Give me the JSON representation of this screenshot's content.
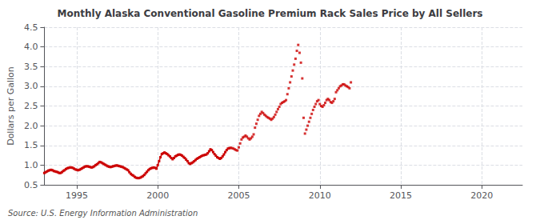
{
  "chart_data": {
    "type": "line",
    "title": "Monthly Alaska Conventional Gasoline Premium Rack Sales Price by All Sellers",
    "ylabel": "Dollars per Gallon",
    "source": "Source: U.S. Energy Information Administration",
    "xlim": [
      1993.0,
      2022.5
    ],
    "ylim": [
      0.5,
      4.5
    ],
    "xticks": [
      1995,
      2000,
      2005,
      2010,
      2015,
      2020
    ],
    "yticks": [
      0.5,
      {
        "value": 1.0,
        "label": "1.0"
      },
      1.5,
      {
        "value": 2.0,
        "label": "2.0"
      },
      2.5,
      {
        "value": 3.0,
        "label": "3.0"
      },
      3.5,
      {
        "value": 4.0,
        "label": "4.0"
      },
      4.5
    ],
    "grid": true,
    "series": [
      {
        "type": "line",
        "color": "#cc0000",
        "marker": "square",
        "line_style": "solid",
        "x": [
          1993.0,
          1993.083,
          1993.167,
          1993.25,
          1993.333,
          1993.417,
          1993.5,
          1993.583,
          1993.667,
          1993.75,
          1993.833,
          1993.917,
          1994.0,
          1994.083,
          1994.167,
          1994.25,
          1994.333,
          1994.417,
          1994.5,
          1994.583,
          1994.667,
          1994.75,
          1994.833,
          1994.917,
          1995.0,
          1995.083,
          1995.167,
          1995.25,
          1995.333,
          1995.417,
          1995.5,
          1995.583,
          1995.667,
          1995.75,
          1995.833,
          1995.917,
          1996.0,
          1996.083,
          1996.167,
          1996.25,
          1996.333,
          1996.417,
          1996.5,
          1996.583,
          1996.667,
          1996.75,
          1996.833,
          1996.917,
          1997.0,
          1997.083,
          1997.167,
          1997.25,
          1997.333,
          1997.417,
          1997.5,
          1997.583,
          1997.667,
          1997.75,
          1997.833,
          1997.917,
          1998.0,
          1998.083,
          1998.167,
          1998.25,
          1998.333,
          1998.417,
          1998.5,
          1998.583,
          1998.667,
          1998.75,
          1998.833,
          1998.917,
          1999.0,
          1999.083,
          1999.167,
          1999.25,
          1999.333,
          1999.417,
          1999.5,
          1999.583,
          1999.667,
          1999.75,
          1999.833,
          1999.917,
          2000.0,
          2000.083,
          2000.167,
          2000.25,
          2000.333,
          2000.417,
          2000.5,
          2000.583,
          2000.667,
          2000.75,
          2000.833,
          2000.917,
          2001.0,
          2001.083,
          2001.167,
          2001.25,
          2001.333,
          2001.417,
          2001.5,
          2001.583,
          2001.667,
          2001.75,
          2001.833,
          2001.917,
          2002.0,
          2002.083,
          2002.167,
          2002.25,
          2002.333,
          2002.417,
          2002.5,
          2002.583,
          2002.667,
          2002.75,
          2002.833,
          2002.917,
          2003.0,
          2003.083,
          2003.167,
          2003.25,
          2003.333,
          2003.417,
          2003.5,
          2003.583,
          2003.667,
          2003.75,
          2003.833,
          2003.917,
          2004.0,
          2004.083,
          2004.167,
          2004.25,
          2004.333,
          2004.417
        ],
        "values": [
          0.8,
          0.82,
          0.84,
          0.86,
          0.87,
          0.88,
          0.87,
          0.85,
          0.84,
          0.83,
          0.82,
          0.8,
          0.8,
          0.82,
          0.85,
          0.87,
          0.9,
          0.92,
          0.93,
          0.94,
          0.94,
          0.93,
          0.91,
          0.89,
          0.88,
          0.87,
          0.88,
          0.9,
          0.92,
          0.94,
          0.96,
          0.97,
          0.97,
          0.96,
          0.95,
          0.94,
          0.95,
          0.97,
          1.0,
          1.02,
          1.05,
          1.08,
          1.07,
          1.05,
          1.03,
          1.01,
          0.99,
          0.97,
          0.96,
          0.95,
          0.96,
          0.97,
          0.98,
          0.99,
          0.99,
          0.98,
          0.97,
          0.96,
          0.95,
          0.93,
          0.91,
          0.89,
          0.87,
          0.82,
          0.78,
          0.75,
          0.73,
          0.7,
          0.68,
          0.67,
          0.67,
          0.68,
          0.7,
          0.72,
          0.75,
          0.79,
          0.83,
          0.87,
          0.9,
          0.92,
          0.93,
          0.94,
          0.93,
          0.91,
          1.0,
          1.1,
          1.2,
          1.28,
          1.3,
          1.32,
          1.3,
          1.28,
          1.25,
          1.22,
          1.18,
          1.15,
          1.18,
          1.22,
          1.24,
          1.26,
          1.27,
          1.26,
          1.24,
          1.21,
          1.18,
          1.14,
          1.1,
          1.05,
          1.03,
          1.05,
          1.07,
          1.1,
          1.13,
          1.16,
          1.18,
          1.2,
          1.22,
          1.24,
          1.25,
          1.26,
          1.27,
          1.3,
          1.35,
          1.4,
          1.38,
          1.33,
          1.28,
          1.24,
          1.2,
          1.18,
          1.16,
          1.18,
          1.22,
          1.27,
          1.33,
          1.38,
          1.42,
          1.43
        ]
      },
      {
        "type": "scatter",
        "color": "#cc0000",
        "marker": "square",
        "x": [
          2004.5,
          2004.583,
          2004.667,
          2004.75,
          2004.833,
          2004.917,
          2005.0,
          2005.083,
          2005.167,
          2005.25,
          2005.333,
          2005.417,
          2005.5,
          2005.583,
          2005.667,
          2005.75,
          2005.833,
          2005.917,
          2006.0,
          2006.083,
          2006.167,
          2006.25,
          2006.333,
          2006.417,
          2006.5,
          2006.583,
          2006.667,
          2006.75,
          2006.833,
          2006.917,
          2007.0,
          2007.083,
          2007.167,
          2007.25,
          2007.333,
          2007.417,
          2007.5,
          2007.583,
          2007.667,
          2007.75,
          2007.833,
          2007.917,
          2008.0,
          2008.083,
          2008.167,
          2008.25,
          2008.333,
          2008.417,
          2008.5,
          2008.583,
          2008.667,
          2008.75,
          2008.833,
          2008.917,
          2009.0,
          2009.083,
          2009.167,
          2009.25,
          2009.333,
          2009.417,
          2009.5,
          2009.583,
          2009.667,
          2009.75,
          2009.833,
          2009.917,
          2010.0,
          2010.083,
          2010.167,
          2010.25,
          2010.333,
          2010.417,
          2010.5,
          2010.583,
          2010.667,
          2010.75,
          2010.833,
          2010.917,
          2011.0,
          2011.083,
          2011.167,
          2011.25,
          2011.333,
          2011.417,
          2011.5,
          2011.583,
          2011.667,
          2011.75,
          2011.833,
          2011.917
        ],
        "values": [
          1.44,
          1.43,
          1.42,
          1.4,
          1.38,
          1.37,
          1.45,
          1.55,
          1.65,
          1.7,
          1.72,
          1.75,
          1.72,
          1.68,
          1.65,
          1.68,
          1.72,
          1.78,
          1.95,
          2.05,
          2.15,
          2.25,
          2.3,
          2.35,
          2.32,
          2.28,
          2.25,
          2.22,
          2.2,
          2.18,
          2.15,
          2.18,
          2.22,
          2.28,
          2.35,
          2.42,
          2.48,
          2.55,
          2.58,
          2.6,
          2.62,
          2.65,
          2.8,
          2.95,
          3.1,
          3.25,
          3.4,
          3.55,
          3.7,
          3.9,
          4.05,
          3.85,
          3.6,
          3.2,
          2.2,
          1.8,
          1.9,
          2.0,
          2.1,
          2.2,
          2.3,
          2.4,
          2.48,
          2.55,
          2.62,
          2.65,
          2.55,
          2.5,
          2.48,
          2.52,
          2.58,
          2.65,
          2.68,
          2.65,
          2.6,
          2.58,
          2.62,
          2.68,
          2.85,
          2.9,
          2.95,
          3.0,
          3.02,
          3.05,
          3.05,
          3.02,
          3.0,
          2.98,
          2.95,
          3.1
        ]
      }
    ]
  }
}
